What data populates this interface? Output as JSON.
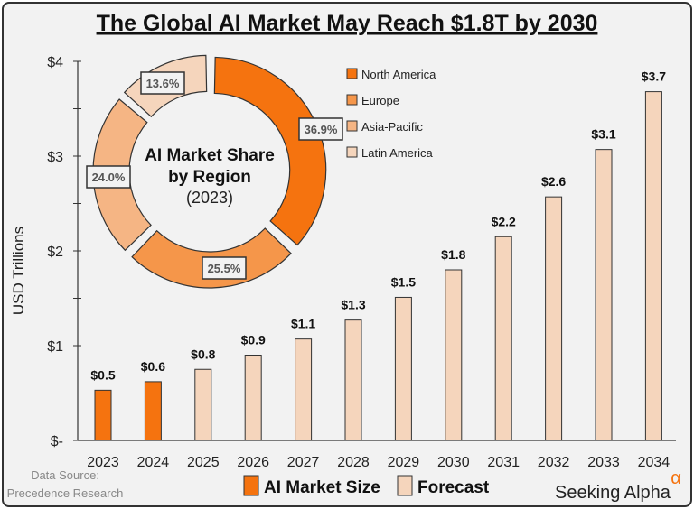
{
  "chart_data": [
    {
      "type": "bar",
      "title": "The Global AI Market May Reach $1.8T by 2030",
      "ylabel": "USD Trillions",
      "ylim": [
        0,
        4
      ],
      "yticks": [
        "$-",
        "$1",
        "$2",
        "$3",
        "$4"
      ],
      "categories": [
        "2023",
        "2024",
        "2025",
        "2026",
        "2027",
        "2028",
        "2029",
        "2030",
        "2031",
        "2032",
        "2033",
        "2034"
      ],
      "values": [
        0.53,
        0.62,
        0.75,
        0.9,
        1.07,
        1.27,
        1.51,
        1.8,
        2.15,
        2.57,
        3.07,
        3.68
      ],
      "data_labels": [
        "$0.5",
        "$0.6",
        "$0.8",
        "$0.9",
        "$1.1",
        "$1.3",
        "$1.5",
        "$1.8",
        "$2.2",
        "$2.6",
        "$3.1",
        "$3.7"
      ],
      "series_kind": [
        "actual",
        "actual",
        "forecast",
        "forecast",
        "forecast",
        "forecast",
        "forecast",
        "forecast",
        "forecast",
        "forecast",
        "forecast",
        "forecast"
      ],
      "legend": [
        {
          "name": "AI Market Size",
          "color": "#F5730F"
        },
        {
          "name": "Forecast",
          "color": "#F5D5BC"
        }
      ],
      "legend_placement": "bottom",
      "grid": false
    },
    {
      "type": "pie",
      "title": "AI Market Share by Region",
      "subtitle": "(2023)",
      "labels": [
        "North America",
        "Europe",
        "Asia-Pacific",
        "Latin America"
      ],
      "values": [
        36.9,
        25.5,
        24.0,
        13.6
      ],
      "data_labels": [
        "36.9%",
        "25.5%",
        "24.0%",
        "13.6%"
      ],
      "colors": [
        "#F5730F",
        "#F5964A",
        "#F5B584",
        "#F5D5BC"
      ],
      "legend_placement": "right"
    }
  ],
  "footer": {
    "source_line1": "Data Source:",
    "source_line2": "Precedence Research",
    "brand": "Seeking Alpha",
    "brand_mark": "α"
  }
}
